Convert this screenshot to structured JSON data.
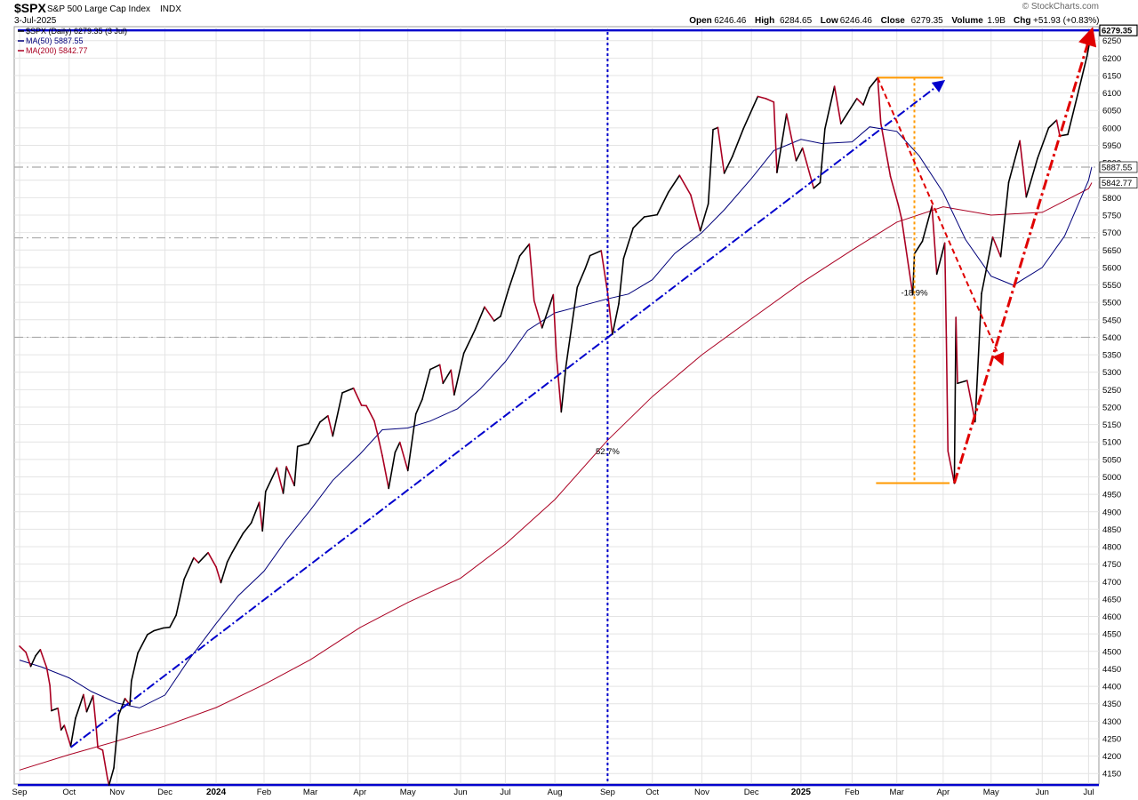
{
  "header": {
    "symbol": "$SPX",
    "name": "S&P 500 Large Cap Index",
    "exchange": "INDX",
    "date": "3-Jul-2025",
    "brand": "© StockCharts.com",
    "ohlc": [
      {
        "label": "Open",
        "value": "6246.46"
      },
      {
        "label": "High",
        "value": "6284.65"
      },
      {
        "label": "Low",
        "value": "6246.46"
      },
      {
        "label": "Close",
        "value": "6279.35"
      },
      {
        "label": "Volume",
        "value": "1.9B"
      },
      {
        "label": "Chg",
        "value": "+51.93 (+0.83%)"
      }
    ]
  },
  "legend": [
    {
      "text": "$SPX (Daily) 6279.35 (3 Jul)",
      "color": "#000000"
    },
    {
      "text": "MA(50) 5887.55",
      "color": "#00007a"
    },
    {
      "text": "MA(200) 5842.77",
      "color": "#aa0022"
    }
  ],
  "price_tags": [
    {
      "value": 6279.35,
      "text": "6279.35",
      "bold": true
    },
    {
      "value": 5887.55,
      "text": "5887.55",
      "bold": false
    },
    {
      "value": 5842.77,
      "text": "5842.77",
      "bold": false
    }
  ],
  "annotations": {
    "gain_label": "52.7%",
    "drawdown_label": "-18.9%"
  },
  "chart_data": {
    "type": "line",
    "title": "$SPX S&P 500 Large Cap Index INDX",
    "ylim": [
      4120,
      6290
    ],
    "y_ticks": [
      4150,
      4200,
      4250,
      4300,
      4350,
      4400,
      4450,
      4500,
      4550,
      4600,
      4650,
      4700,
      4750,
      4800,
      4850,
      4900,
      4950,
      5000,
      5050,
      5100,
      5150,
      5200,
      5250,
      5300,
      5350,
      5400,
      5450,
      5500,
      5550,
      5600,
      5650,
      5700,
      5750,
      5800,
      5850,
      5900,
      5950,
      6000,
      6050,
      6100,
      6150,
      6200,
      6250
    ],
    "x_ticks": [
      {
        "label": "Sep",
        "date": "2023-09-01"
      },
      {
        "label": "Oct",
        "date": "2023-10-02"
      },
      {
        "label": "Nov",
        "date": "2023-11-01"
      },
      {
        "label": "Dec",
        "date": "2023-12-01"
      },
      {
        "label": "2024",
        "date": "2024-01-02",
        "year": true
      },
      {
        "label": "Feb",
        "date": "2024-02-01"
      },
      {
        "label": "Mar",
        "date": "2024-03-01"
      },
      {
        "label": "Apr",
        "date": "2024-04-01"
      },
      {
        "label": "May",
        "date": "2024-05-01"
      },
      {
        "label": "Jun",
        "date": "2024-06-03"
      },
      {
        "label": "Jul",
        "date": "2024-07-01"
      },
      {
        "label": "Aug",
        "date": "2024-08-01"
      },
      {
        "label": "Sep",
        "date": "2024-09-03"
      },
      {
        "label": "Oct",
        "date": "2024-10-01"
      },
      {
        "label": "Nov",
        "date": "2024-11-01"
      },
      {
        "label": "Dec",
        "date": "2024-12-02"
      },
      {
        "label": "2025",
        "date": "2025-01-02",
        "year": true
      },
      {
        "label": "Feb",
        "date": "2025-02-03"
      },
      {
        "label": "Mar",
        "date": "2025-03-03"
      },
      {
        "label": "Apr",
        "date": "2025-04-01"
      },
      {
        "label": "May",
        "date": "2025-05-01"
      },
      {
        "label": "Jun",
        "date": "2025-06-02"
      },
      {
        "label": "Jul",
        "date": "2025-07-01"
      }
    ],
    "series": [
      {
        "name": "$SPX (Daily)",
        "color": "#000000",
        "down_color": "#aa0022",
        "points": [
          [
            "2023-09-01",
            4515
          ],
          [
            "2023-09-05",
            4497
          ],
          [
            "2023-09-08",
            4457
          ],
          [
            "2023-09-11",
            4487
          ],
          [
            "2023-09-14",
            4505
          ],
          [
            "2023-09-18",
            4453
          ],
          [
            "2023-09-20",
            4402
          ],
          [
            "2023-09-21",
            4330
          ],
          [
            "2023-09-25",
            4337
          ],
          [
            "2023-09-27",
            4275
          ],
          [
            "2023-09-29",
            4288
          ],
          [
            "2023-10-03",
            4229
          ],
          [
            "2023-10-06",
            4308
          ],
          [
            "2023-10-11",
            4376
          ],
          [
            "2023-10-13",
            4327
          ],
          [
            "2023-10-17",
            4373
          ],
          [
            "2023-10-19",
            4278
          ],
          [
            "2023-10-20",
            4224
          ],
          [
            "2023-10-23",
            4217
          ],
          [
            "2023-10-26",
            4137
          ],
          [
            "2023-10-27",
            4117
          ],
          [
            "2023-10-30",
            4166
          ],
          [
            "2023-11-02",
            4317
          ],
          [
            "2023-11-06",
            4365
          ],
          [
            "2023-11-09",
            4347
          ],
          [
            "2023-11-10",
            4415
          ],
          [
            "2023-11-14",
            4495
          ],
          [
            "2023-11-20",
            4548
          ],
          [
            "2023-11-24",
            4559
          ],
          [
            "2023-11-30",
            4567
          ],
          [
            "2023-12-04",
            4569
          ],
          [
            "2023-12-08",
            4604
          ],
          [
            "2023-12-13",
            4707
          ],
          [
            "2023-12-19",
            4768
          ],
          [
            "2023-12-22",
            4754
          ],
          [
            "2023-12-28",
            4783
          ],
          [
            "2024-01-02",
            4742
          ],
          [
            "2024-01-05",
            4697
          ],
          [
            "2024-01-09",
            4756
          ],
          [
            "2024-01-12",
            4783
          ],
          [
            "2024-01-19",
            4839
          ],
          [
            "2024-01-24",
            4868
          ],
          [
            "2024-01-29",
            4927
          ],
          [
            "2024-01-31",
            4845
          ],
          [
            "2024-02-02",
            4958
          ],
          [
            "2024-02-09",
            5026
          ],
          [
            "2024-02-13",
            4953
          ],
          [
            "2024-02-15",
            5029
          ],
          [
            "2024-02-20",
            4975
          ],
          [
            "2024-02-22",
            5087
          ],
          [
            "2024-02-29",
            5096
          ],
          [
            "2024-03-07",
            5157
          ],
          [
            "2024-03-12",
            5175
          ],
          [
            "2024-03-15",
            5117
          ],
          [
            "2024-03-21",
            5241
          ],
          [
            "2024-03-28",
            5254
          ],
          [
            "2024-04-02",
            5205
          ],
          [
            "2024-04-05",
            5204
          ],
          [
            "2024-04-10",
            5160
          ],
          [
            "2024-04-12",
            5123
          ],
          [
            "2024-04-15",
            5061
          ],
          [
            "2024-04-19",
            4967
          ],
          [
            "2024-04-23",
            5070
          ],
          [
            "2024-04-26",
            5099
          ],
          [
            "2024-05-01",
            5018
          ],
          [
            "2024-05-06",
            5180
          ],
          [
            "2024-05-10",
            5222
          ],
          [
            "2024-05-15",
            5308
          ],
          [
            "2024-05-21",
            5321
          ],
          [
            "2024-05-23",
            5268
          ],
          [
            "2024-05-28",
            5306
          ],
          [
            "2024-05-30",
            5235
          ],
          [
            "2024-06-05",
            5354
          ],
          [
            "2024-06-12",
            5421
          ],
          [
            "2024-06-18",
            5487
          ],
          [
            "2024-06-24",
            5447
          ],
          [
            "2024-06-28",
            5460
          ],
          [
            "2024-07-03",
            5537
          ],
          [
            "2024-07-10",
            5633
          ],
          [
            "2024-07-16",
            5667
          ],
          [
            "2024-07-19",
            5505
          ],
          [
            "2024-07-24",
            5427
          ],
          [
            "2024-07-31",
            5522
          ],
          [
            "2024-08-02",
            5346
          ],
          [
            "2024-08-05",
            5186
          ],
          [
            "2024-08-08",
            5319
          ],
          [
            "2024-08-15",
            5543
          ],
          [
            "2024-08-20",
            5597
          ],
          [
            "2024-08-23",
            5634
          ],
          [
            "2024-08-30",
            5648
          ],
          [
            "2024-09-03",
            5528
          ],
          [
            "2024-09-06",
            5408
          ],
          [
            "2024-09-10",
            5496
          ],
          [
            "2024-09-13",
            5626
          ],
          [
            "2024-09-19",
            5713
          ],
          [
            "2024-09-26",
            5745
          ],
          [
            "2024-10-04",
            5751
          ],
          [
            "2024-10-11",
            5815
          ],
          [
            "2024-10-18",
            5864
          ],
          [
            "2024-10-25",
            5808
          ],
          [
            "2024-10-31",
            5705
          ],
          [
            "2024-11-05",
            5782
          ],
          [
            "2024-11-08",
            5995
          ],
          [
            "2024-11-11",
            6001
          ],
          [
            "2024-11-15",
            5870
          ],
          [
            "2024-11-20",
            5917
          ],
          [
            "2024-11-27",
            5998
          ],
          [
            "2024-12-06",
            6090
          ],
          [
            "2024-12-11",
            6084
          ],
          [
            "2024-12-16",
            6074
          ],
          [
            "2024-12-18",
            5872
          ],
          [
            "2024-12-24",
            6040
          ],
          [
            "2024-12-30",
            5906
          ],
          [
            "2025-01-03",
            5942
          ],
          [
            "2025-01-10",
            5827
          ],
          [
            "2025-01-14",
            5843
          ],
          [
            "2025-01-17",
            5997
          ],
          [
            "2025-01-23",
            6119
          ],
          [
            "2025-01-27",
            6012
          ],
          [
            "2025-01-31",
            6041
          ],
          [
            "2025-02-06",
            6084
          ],
          [
            "2025-02-10",
            6066
          ],
          [
            "2025-02-14",
            6115
          ],
          [
            "2025-02-19",
            6144
          ],
          [
            "2025-02-21",
            6013
          ],
          [
            "2025-02-27",
            5861
          ],
          [
            "2025-03-04",
            5778
          ],
          [
            "2025-03-06",
            5739
          ],
          [
            "2025-03-10",
            5614
          ],
          [
            "2025-03-13",
            5522
          ],
          [
            "2025-03-14",
            5639
          ],
          [
            "2025-03-19",
            5675
          ],
          [
            "2025-03-25",
            5776
          ],
          [
            "2025-03-28",
            5581
          ],
          [
            "2025-04-02",
            5670
          ],
          [
            "2025-04-03",
            5396
          ],
          [
            "2025-04-04",
            5074
          ],
          [
            "2025-04-08",
            4982
          ],
          [
            "2025-04-09",
            5457
          ],
          [
            "2025-04-10",
            5268
          ],
          [
            "2025-04-16",
            5276
          ],
          [
            "2025-04-21",
            5158
          ],
          [
            "2025-04-25",
            5525
          ],
          [
            "2025-05-02",
            5687
          ],
          [
            "2025-05-07",
            5631
          ],
          [
            "2025-05-12",
            5844
          ],
          [
            "2025-05-19",
            5963
          ],
          [
            "2025-05-23",
            5802
          ],
          [
            "2025-05-30",
            5912
          ],
          [
            "2025-06-06",
            6000
          ],
          [
            "2025-06-11",
            6022
          ],
          [
            "2025-06-13",
            5977
          ],
          [
            "2025-06-18",
            5981
          ],
          [
            "2025-06-24",
            6092
          ],
          [
            "2025-06-30",
            6205
          ],
          [
            "2025-07-03",
            6279
          ]
        ]
      },
      {
        "name": "MA(50)",
        "color": "#00007a",
        "points": [
          [
            "2023-09-01",
            4475
          ],
          [
            "2023-09-15",
            4455
          ],
          [
            "2023-10-02",
            4424
          ],
          [
            "2023-10-16",
            4385
          ],
          [
            "2023-11-01",
            4352
          ],
          [
            "2023-11-15",
            4338
          ],
          [
            "2023-12-01",
            4375
          ],
          [
            "2023-12-15",
            4470
          ],
          [
            "2024-01-02",
            4580
          ],
          [
            "2024-01-16",
            4660
          ],
          [
            "2024-02-01",
            4730
          ],
          [
            "2024-02-15",
            4820
          ],
          [
            "2024-03-01",
            4905
          ],
          [
            "2024-03-15",
            4990
          ],
          [
            "2024-04-01",
            5065
          ],
          [
            "2024-04-15",
            5135
          ],
          [
            "2024-05-01",
            5140
          ],
          [
            "2024-05-15",
            5160
          ],
          [
            "2024-06-01",
            5195
          ],
          [
            "2024-06-15",
            5250
          ],
          [
            "2024-07-01",
            5330
          ],
          [
            "2024-07-15",
            5420
          ],
          [
            "2024-08-01",
            5470
          ],
          [
            "2024-08-15",
            5487
          ],
          [
            "2024-09-03",
            5510
          ],
          [
            "2024-09-16",
            5524
          ],
          [
            "2024-10-01",
            5565
          ],
          [
            "2024-10-15",
            5640
          ],
          [
            "2024-11-01",
            5700
          ],
          [
            "2024-11-15",
            5765
          ],
          [
            "2024-12-02",
            5855
          ],
          [
            "2024-12-16",
            5935
          ],
          [
            "2025-01-02",
            5967
          ],
          [
            "2025-01-15",
            5955
          ],
          [
            "2025-02-03",
            5960
          ],
          [
            "2025-02-14",
            6003
          ],
          [
            "2025-03-03",
            5990
          ],
          [
            "2025-03-17",
            5920
          ],
          [
            "2025-04-01",
            5815
          ],
          [
            "2025-04-15",
            5680
          ],
          [
            "2025-05-01",
            5575
          ],
          [
            "2025-05-15",
            5549
          ],
          [
            "2025-06-02",
            5600
          ],
          [
            "2025-06-16",
            5690
          ],
          [
            "2025-07-01",
            5850
          ],
          [
            "2025-07-03",
            5888
          ]
        ]
      },
      {
        "name": "MA(200)",
        "color": "#aa0022",
        "points": [
          [
            "2023-09-01",
            4160
          ],
          [
            "2023-10-02",
            4204
          ],
          [
            "2023-11-01",
            4243
          ],
          [
            "2023-12-01",
            4286
          ],
          [
            "2024-01-02",
            4339
          ],
          [
            "2024-02-01",
            4405
          ],
          [
            "2024-03-01",
            4476
          ],
          [
            "2024-04-01",
            4568
          ],
          [
            "2024-05-01",
            4640
          ],
          [
            "2024-06-03",
            4710
          ],
          [
            "2024-07-01",
            4807
          ],
          [
            "2024-08-01",
            4935
          ],
          [
            "2024-09-03",
            5105
          ],
          [
            "2024-10-01",
            5230
          ],
          [
            "2024-11-01",
            5350
          ],
          [
            "2024-12-02",
            5453
          ],
          [
            "2025-01-02",
            5555
          ],
          [
            "2025-02-03",
            5650
          ],
          [
            "2025-03-03",
            5730
          ],
          [
            "2025-04-01",
            5774
          ],
          [
            "2025-05-01",
            5750
          ],
          [
            "2025-06-02",
            5758
          ],
          [
            "2025-07-01",
            5826
          ],
          [
            "2025-07-03",
            5843
          ]
        ]
      }
    ],
    "reference_levels": [
      {
        "value": 6279.35,
        "style": "blue-solid"
      },
      {
        "value": 4117,
        "style": "blue-solid"
      },
      {
        "value": 5887.55,
        "style": "grey-dashed"
      },
      {
        "value": 5685,
        "style": "grey-dashed"
      },
      {
        "value": 5400,
        "style": "grey-dashed"
      }
    ]
  }
}
